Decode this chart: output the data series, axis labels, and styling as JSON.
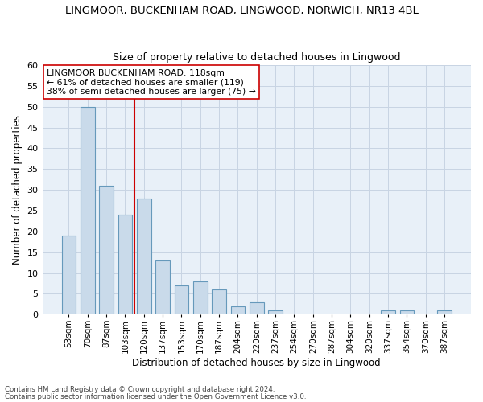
{
  "title": "LINGMOOR, BUCKENHAM ROAD, LINGWOOD, NORWICH, NR13 4BL",
  "subtitle": "Size of property relative to detached houses in Lingwood",
  "xlabel": "Distribution of detached houses by size in Lingwood",
  "ylabel": "Number of detached properties",
  "categories": [
    "53sqm",
    "70sqm",
    "87sqm",
    "103sqm",
    "120sqm",
    "137sqm",
    "153sqm",
    "170sqm",
    "187sqm",
    "204sqm",
    "220sqm",
    "237sqm",
    "254sqm",
    "270sqm",
    "287sqm",
    "304sqm",
    "320sqm",
    "337sqm",
    "354sqm",
    "370sqm",
    "387sqm"
  ],
  "values": [
    19,
    50,
    31,
    24,
    28,
    13,
    7,
    8,
    6,
    2,
    3,
    1,
    0,
    0,
    0,
    0,
    0,
    1,
    1,
    0,
    1
  ],
  "bar_color": "#c9daea",
  "bar_edge_color": "#6699bb",
  "vline_x_index": 3.5,
  "vline_color": "#cc0000",
  "annotation_text": "LINGMOOR BUCKENHAM ROAD: 118sqm\n← 61% of detached houses are smaller (119)\n38% of semi-detached houses are larger (75) →",
  "annotation_box_color": "#ffffff",
  "annotation_box_edge": "#cc0000",
  "ylim": [
    0,
    60
  ],
  "yticks": [
    0,
    5,
    10,
    15,
    20,
    25,
    30,
    35,
    40,
    45,
    50,
    55,
    60
  ],
  "footer1": "Contains HM Land Registry data © Crown copyright and database right 2024.",
  "footer2": "Contains public sector information licensed under the Open Government Licence v3.0.",
  "grid_color": "#c8d4e3",
  "bg_color": "#e8f0f8",
  "bar_width": 0.75
}
